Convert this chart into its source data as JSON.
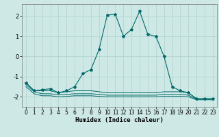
{
  "xlabel": "Humidex (Indice chaleur)",
  "background_color": "#cde8e5",
  "grid_color": "#b8d8d4",
  "line_color": "#006868",
  "x": [
    0,
    1,
    2,
    3,
    4,
    5,
    6,
    7,
    8,
    9,
    10,
    11,
    12,
    13,
    14,
    15,
    16,
    17,
    18,
    19,
    20,
    21,
    22,
    23
  ],
  "y_main": [
    -1.3,
    -1.7,
    -1.65,
    -1.6,
    -1.8,
    -1.7,
    -1.5,
    -0.85,
    -0.65,
    0.35,
    2.05,
    2.1,
    1.0,
    1.35,
    2.25,
    1.1,
    1.0,
    0.0,
    -1.5,
    -1.7,
    -1.8,
    -2.1,
    -2.1,
    -2.1
  ],
  "y_line2": [
    -1.3,
    -1.7,
    -1.7,
    -1.7,
    -1.8,
    -1.75,
    -1.7,
    -1.7,
    -1.7,
    -1.75,
    -1.8,
    -1.8,
    -1.8,
    -1.8,
    -1.8,
    -1.8,
    -1.8,
    -1.75,
    -1.75,
    -1.75,
    -1.8,
    -2.1,
    -2.1,
    -2.1
  ],
  "y_line3": [
    -1.4,
    -1.75,
    -1.85,
    -1.85,
    -1.9,
    -1.88,
    -1.85,
    -1.85,
    -1.85,
    -1.88,
    -1.92,
    -1.92,
    -1.92,
    -1.92,
    -1.92,
    -1.92,
    -1.92,
    -1.88,
    -1.88,
    -1.88,
    -1.92,
    -2.12,
    -2.12,
    -2.12
  ],
  "y_line4": [
    -1.5,
    -1.85,
    -1.95,
    -1.95,
    -2.0,
    -1.98,
    -1.95,
    -1.95,
    -1.95,
    -1.98,
    -2.0,
    -2.0,
    -2.0,
    -2.0,
    -2.0,
    -2.0,
    -2.0,
    -1.98,
    -1.98,
    -1.98,
    -2.0,
    -2.15,
    -2.15,
    -2.15
  ],
  "ylim": [
    -2.5,
    2.6
  ],
  "xlim": [
    -0.5,
    23.5
  ],
  "yticks": [
    -2,
    -1,
    0,
    1,
    2
  ],
  "xticks": [
    0,
    1,
    2,
    3,
    4,
    5,
    6,
    7,
    8,
    9,
    10,
    11,
    12,
    13,
    14,
    15,
    16,
    17,
    18,
    19,
    20,
    21,
    22,
    23
  ]
}
